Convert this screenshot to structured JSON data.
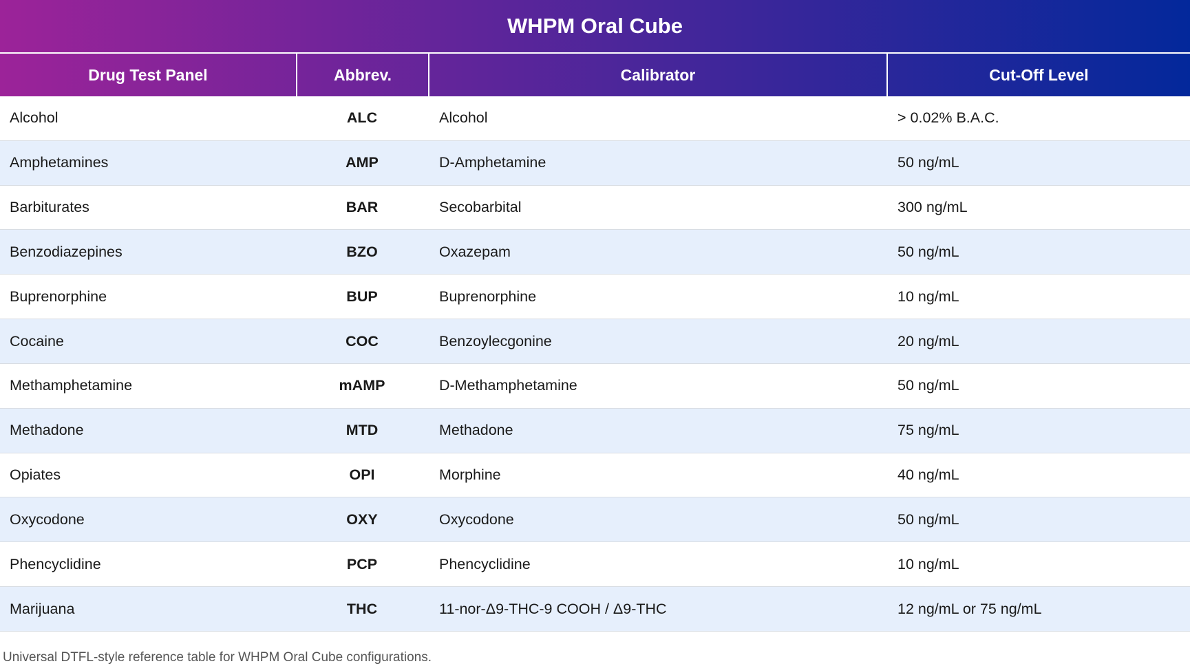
{
  "chart_data": {
    "type": "table",
    "title": "WHPM Oral Cube",
    "columns": [
      "Drug Test Panel",
      "Abbrev.",
      "Calibrator",
      "Cut-Off Level"
    ],
    "rows": [
      {
        "panel": "Alcohol",
        "abbrev": "ALC",
        "calibrator": "Alcohol",
        "cutoff": "> 0.02% B.A.C."
      },
      {
        "panel": "Amphetamines",
        "abbrev": "AMP",
        "calibrator": "D-Amphetamine",
        "cutoff": "50 ng/mL"
      },
      {
        "panel": "Barbiturates",
        "abbrev": "BAR",
        "calibrator": "Secobarbital",
        "cutoff": "300 ng/mL"
      },
      {
        "panel": "Benzodiazepines",
        "abbrev": "BZO",
        "calibrator": "Oxazepam",
        "cutoff": "50 ng/mL"
      },
      {
        "panel": "Buprenorphine",
        "abbrev": "BUP",
        "calibrator": "Buprenorphine",
        "cutoff": "10 ng/mL"
      },
      {
        "panel": "Cocaine",
        "abbrev": "COC",
        "calibrator": "Benzoylecgonine",
        "cutoff": "20 ng/mL"
      },
      {
        "panel": "Methamphetamine",
        "abbrev": "mAMP",
        "calibrator": "D-Methamphetamine",
        "cutoff": "50 ng/mL"
      },
      {
        "panel": "Methadone",
        "abbrev": "MTD",
        "calibrator": "Methadone",
        "cutoff": "75 ng/mL"
      },
      {
        "panel": "Opiates",
        "abbrev": "OPI",
        "calibrator": "Morphine",
        "cutoff": "40 ng/mL"
      },
      {
        "panel": "Oxycodone",
        "abbrev": "OXY",
        "calibrator": "Oxycodone",
        "cutoff": "50 ng/mL"
      },
      {
        "panel": "Phencyclidine",
        "abbrev": "PCP",
        "calibrator": "Phencyclidine",
        "cutoff": "10 ng/mL"
      },
      {
        "panel": "Marijuana",
        "abbrev": "THC",
        "calibrator": "11-nor-Δ9-THC-9 COOH / Δ9-THC",
        "cutoff": "12 ng/mL or 75 ng/mL"
      }
    ],
    "caption": "Universal DTFL-style reference table for WHPM Oral Cube configurations.",
    "layout": {
      "legend": "none",
      "grid": "horizontal-row-borders",
      "stripe_pattern": "even-rows"
    }
  },
  "colors": {
    "gradient_start": "#9c2399",
    "gradient_end": "#03289b",
    "stripe": "#e6effc",
    "row_border": "#d9dde3",
    "body_text": "#1a1a1a",
    "footer_text": "#555555",
    "header_text": "#ffffff"
  }
}
